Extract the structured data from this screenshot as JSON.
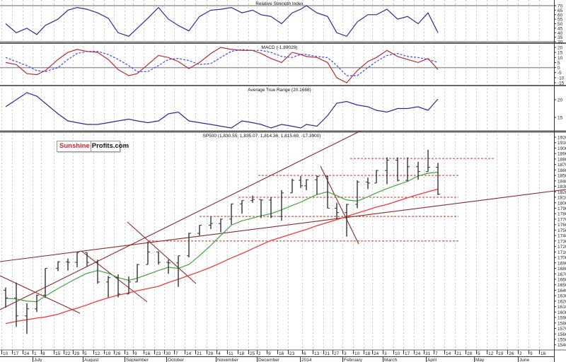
{
  "panels": {
    "rsi_title": "Relative Strength Index",
    "macd_title": "MACD (-1.89029)",
    "atr_title": "Average True Range (20.1668)",
    "price_title": "SP500 (1,830.55, 1,835.07, 1,814.36, 1,815.69, -17.3900)"
  },
  "logo": {
    "part1": "Sunshine",
    "part2": "Profits.com"
  },
  "colors": {
    "bars": "#333333",
    "ma50": "#3fa63f",
    "ma200": "#f03a3a",
    "trend": "#8b2a2a",
    "level": "#c0392b",
    "rsi": "#2b2b9a",
    "macd": "#b03030",
    "signal": "#3a4aff",
    "atr": "#2b2b9a"
  },
  "chart_data": [
    {
      "type": "line",
      "title": "Relative Strength Index",
      "ylim": [
        30,
        70
      ],
      "yticks": [
        "70",
        "65",
        "60",
        "55",
        "50",
        "45",
        "40",
        "35",
        "30"
      ],
      "series": [
        {
          "name": "RSI",
          "values": [
            50,
            40,
            45,
            38,
            48,
            55,
            65,
            68,
            66,
            62,
            56,
            40,
            36,
            45,
            56,
            68,
            55,
            48,
            42,
            58,
            65,
            66,
            68,
            62,
            65,
            60,
            58,
            50,
            62,
            66,
            70,
            62,
            58,
            40,
            36,
            52,
            60,
            60,
            66,
            55,
            58,
            50,
            62,
            40
          ]
        }
      ]
    },
    {
      "type": "line",
      "title": "MACD (-1.89029)",
      "ylim": [
        -15,
        20
      ],
      "yticks": [
        "20",
        "15",
        "10",
        "5",
        "0",
        "-5",
        "-10",
        "-15"
      ],
      "series": [
        {
          "name": "MACD",
          "values": [
            5,
            3,
            -6,
            -7,
            -3,
            8,
            15,
            18,
            16,
            15,
            8,
            -2,
            -8,
            -6,
            3,
            12,
            10,
            6,
            -1,
            5,
            14,
            20,
            18,
            17,
            17,
            14,
            9,
            5,
            15,
            13,
            11,
            10,
            5,
            -10,
            -15,
            -3,
            6,
            10,
            17,
            11,
            8,
            5,
            9,
            -1.89
          ]
        },
        {
          "name": "Signal",
          "values": [
            10,
            6,
            2,
            -3,
            -4,
            0,
            8,
            14,
            16,
            16,
            13,
            8,
            2,
            -4,
            -4,
            2,
            8,
            9,
            7,
            3,
            4,
            10,
            16,
            18,
            17,
            17,
            15,
            11,
            10,
            13,
            13,
            11,
            10,
            2,
            -8,
            -8,
            0,
            6,
            12,
            14,
            11,
            10,
            8,
            5
          ]
        }
      ]
    },
    {
      "type": "line",
      "title": "Average True Range (20.1668)",
      "yticks": [
        "20",
        "15"
      ],
      "series": [
        {
          "name": "ATR",
          "values": [
            18,
            20,
            22,
            21,
            19,
            16,
            14,
            13.5,
            13,
            13,
            13.5,
            14,
            14.5,
            14,
            13.5,
            14,
            16,
            16.5,
            14,
            13.5,
            13,
            12.5,
            12,
            14,
            13.5,
            13,
            12,
            13,
            12.5,
            12,
            13,
            12.5,
            15.5,
            19,
            19.5,
            18.5,
            18,
            17,
            16.5,
            17.5,
            17.5,
            18,
            17,
            20.17
          ]
        }
      ]
    },
    {
      "type": "ohlc",
      "title": "SP500 (1,830.55, 1,835.07, 1,814.36, 1,815.69, -17.3900)",
      "ylim": [
        1540,
        1920
      ],
      "yticks": [
        "1920",
        "1910",
        "1900",
        "1890",
        "1880",
        "1870",
        "1860",
        "1850",
        "1840",
        "1830",
        "1820",
        "1810",
        "1800",
        "1790",
        "1780",
        "1770",
        "1760",
        "1750",
        "1740",
        "1730",
        "1720",
        "1710",
        "1700",
        "1690",
        "1680",
        "1670",
        "1660",
        "1650",
        "1640",
        "1630",
        "1620",
        "1610",
        "1600",
        "1590",
        "1580",
        "1570",
        "1560",
        "1550",
        "1540"
      ],
      "weeks": [
        "Jun 10",
        "Jun 17",
        "Jun 24",
        "Jul 1",
        "Jul 8",
        "Jul 15",
        "Jul 22",
        "Jul 29",
        "Aug 5",
        "Aug 12",
        "Aug 19",
        "Aug 26",
        "Sep 3",
        "Sep 9",
        "Sep 16",
        "Sep 23",
        "Sep 30",
        "Oct 7",
        "Oct 14",
        "Oct 21",
        "Oct 28",
        "Nov 4",
        "Nov 11",
        "Nov 18",
        "Nov 25",
        "Dec 2",
        "Dec 9",
        "Dec 16",
        "Dec 23",
        "Dec 30",
        "Jan 6",
        "Jan 13",
        "Jan 21",
        "Jan 27",
        "Feb 3",
        "Feb 10",
        "Feb 18",
        "Feb 24",
        "Mar 3",
        "Mar 10",
        "Mar 17",
        "Mar 24",
        "Mar 31",
        "Apr 7"
      ],
      "ohlc": [
        [
          1640,
          1645,
          1608,
          1626
        ],
        [
          1626,
          1654,
          1573,
          1593
        ],
        [
          1593,
          1616,
          1560,
          1606
        ],
        [
          1606,
          1632,
          1600,
          1631
        ],
        [
          1631,
          1680,
          1626,
          1680
        ],
        [
          1680,
          1693,
          1675,
          1692
        ],
        [
          1692,
          1698,
          1676,
          1691
        ],
        [
          1691,
          1709,
          1682,
          1709
        ],
        [
          1709,
          1709,
          1684,
          1691
        ],
        [
          1691,
          1696,
          1652,
          1655
        ],
        [
          1655,
          1666,
          1627,
          1663
        ],
        [
          1663,
          1669,
          1627,
          1633
        ],
        [
          1633,
          1665,
          1633,
          1655
        ],
        [
          1655,
          1688,
          1655,
          1687
        ],
        [
          1687,
          1729,
          1687,
          1710
        ],
        [
          1710,
          1711,
          1687,
          1691
        ],
        [
          1691,
          1696,
          1670,
          1690
        ],
        [
          1690,
          1703,
          1646,
          1703
        ],
        [
          1703,
          1745,
          1700,
          1744
        ],
        [
          1744,
          1759,
          1740,
          1759
        ],
        [
          1759,
          1775,
          1752,
          1762
        ],
        [
          1762,
          1771,
          1746,
          1770
        ],
        [
          1770,
          1798,
          1760,
          1798
        ],
        [
          1798,
          1804,
          1780,
          1804
        ],
        [
          1804,
          1813,
          1800,
          1806
        ],
        [
          1806,
          1806,
          1772,
          1805
        ],
        [
          1805,
          1810,
          1772,
          1775
        ],
        [
          1775,
          1823,
          1767,
          1818
        ],
        [
          1818,
          1844,
          1818,
          1841
        ],
        [
          1841,
          1849,
          1827,
          1831
        ],
        [
          1831,
          1843,
          1823,
          1842
        ],
        [
          1842,
          1850,
          1815,
          1848
        ],
        [
          1848,
          1850,
          1790,
          1790
        ],
        [
          1790,
          1800,
          1770,
          1782
        ],
        [
          1782,
          1798,
          1738,
          1797
        ],
        [
          1797,
          1841,
          1790,
          1838
        ],
        [
          1838,
          1846,
          1825,
          1836
        ],
        [
          1836,
          1860,
          1836,
          1859
        ],
        [
          1859,
          1883,
          1834,
          1878
        ],
        [
          1878,
          1883,
          1839,
          1841
        ],
        [
          1841,
          1883,
          1839,
          1866
        ],
        [
          1866,
          1875,
          1842,
          1857
        ],
        [
          1857,
          1897,
          1857,
          1865
        ],
        [
          1865,
          1873,
          1814,
          1815.69
        ]
      ],
      "ma50": [
        1625,
        1624,
        1620,
        1619,
        1629,
        1643,
        1653,
        1662,
        1671,
        1676,
        1671,
        1663,
        1658,
        1662,
        1669,
        1676,
        1682,
        1680,
        1687,
        1703,
        1722,
        1740,
        1759,
        1767,
        1772,
        1776,
        1780,
        1787,
        1795,
        1801,
        1806,
        1815,
        1820,
        1813,
        1805,
        1803,
        1811,
        1818,
        1826,
        1833,
        1839,
        1849,
        1854,
        1856
      ],
      "ma200": [
        1579,
        1583,
        1586,
        1589,
        1591,
        1596,
        1602,
        1607,
        1613,
        1620,
        1626,
        1631,
        1635,
        1639,
        1643,
        1647,
        1654,
        1660,
        1667,
        1674,
        1682,
        1690,
        1699,
        1707,
        1716,
        1723,
        1731,
        1737,
        1743,
        1748,
        1751,
        1758,
        1764,
        1769,
        1775,
        1781,
        1787,
        1792,
        1797,
        1803,
        1809,
        1815,
        1820,
        1825
      ],
      "levels": [
        1881,
        1850,
        1810,
        1775,
        1730
      ]
    }
  ],
  "x_axis": {
    "day_labels": [
      "10",
      "17",
      "24",
      "1",
      "8",
      "15",
      "22",
      "29",
      "5",
      "12",
      "19",
      "26",
      "3",
      "9",
      "16",
      "23",
      "30",
      "7",
      "14",
      "21",
      "28",
      "4",
      "11",
      "18",
      "25",
      "2",
      "9",
      "16",
      "23",
      "6",
      "13",
      "21",
      "27",
      "3",
      "10",
      "18",
      "24",
      "3",
      "10",
      "17",
      "24",
      "31",
      "7",
      "14",
      "21",
      "28",
      "5",
      "12",
      "19",
      "26",
      "2",
      "9",
      "16"
    ],
    "months": [
      "July",
      "August",
      "September",
      "October",
      "November",
      "December",
      "2014",
      "February",
      "March",
      "April",
      "May",
      "June"
    ]
  }
}
